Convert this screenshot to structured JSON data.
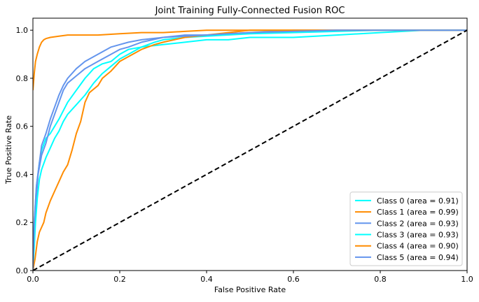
{
  "chart_data": {
    "type": "line",
    "title": "Joint Training Fully-Connected Fusion ROC",
    "xlabel": "False Positive Rate",
    "ylabel": "True Positive Rate",
    "xlim": [
      0.0,
      1.0
    ],
    "ylim": [
      0.0,
      1.05
    ],
    "xticks": [
      "0.0",
      "0.2",
      "0.4",
      "0.6",
      "0.8",
      "1.0"
    ],
    "yticks": [
      "0.0",
      "0.2",
      "0.4",
      "0.6",
      "0.8",
      "1.0"
    ],
    "grid": false,
    "legend_position": "lower-right",
    "diagonal": {
      "color": "#000000",
      "style": "dashed",
      "points": [
        [
          0,
          0
        ],
        [
          1,
          1
        ]
      ]
    },
    "series": [
      {
        "name": "Class 0 (area = 0.91)",
        "color": "#00ffff",
        "points": [
          [
            0,
            0
          ],
          [
            0.003,
            0.2
          ],
          [
            0.008,
            0.35
          ],
          [
            0.015,
            0.45
          ],
          [
            0.02,
            0.5
          ],
          [
            0.03,
            0.55
          ],
          [
            0.04,
            0.57
          ],
          [
            0.05,
            0.6
          ],
          [
            0.06,
            0.63
          ],
          [
            0.08,
            0.7
          ],
          [
            0.1,
            0.75
          ],
          [
            0.12,
            0.8
          ],
          [
            0.14,
            0.84
          ],
          [
            0.16,
            0.86
          ],
          [
            0.18,
            0.87
          ],
          [
            0.2,
            0.9
          ],
          [
            0.22,
            0.92
          ],
          [
            0.25,
            0.93
          ],
          [
            0.3,
            0.94
          ],
          [
            0.35,
            0.95
          ],
          [
            0.4,
            0.96
          ],
          [
            0.45,
            0.96
          ],
          [
            0.5,
            0.97
          ],
          [
            0.6,
            0.97
          ],
          [
            0.7,
            0.98
          ],
          [
            0.8,
            0.99
          ],
          [
            0.9,
            1.0
          ],
          [
            1.0,
            1.0
          ]
        ]
      },
      {
        "name": "Class 1 (area = 0.99)",
        "color": "#ff8c00",
        "points": [
          [
            0,
            0.75
          ],
          [
            0.003,
            0.82
          ],
          [
            0.006,
            0.87
          ],
          [
            0.01,
            0.9
          ],
          [
            0.015,
            0.93
          ],
          [
            0.02,
            0.95
          ],
          [
            0.025,
            0.96
          ],
          [
            0.03,
            0.965
          ],
          [
            0.04,
            0.97
          ],
          [
            0.06,
            0.975
          ],
          [
            0.08,
            0.98
          ],
          [
            0.1,
            0.98
          ],
          [
            0.15,
            0.98
          ],
          [
            0.2,
            0.985
          ],
          [
            0.25,
            0.99
          ],
          [
            0.3,
            0.99
          ],
          [
            0.35,
            0.995
          ],
          [
            0.4,
            1.0
          ],
          [
            0.5,
            1.0
          ],
          [
            0.6,
            1.0
          ],
          [
            0.8,
            1.0
          ],
          [
            1.0,
            1.0
          ]
        ]
      },
      {
        "name": "Class 2 (area = 0.93)",
        "color": "#6495ed",
        "points": [
          [
            0,
            0
          ],
          [
            0.003,
            0.15
          ],
          [
            0.007,
            0.28
          ],
          [
            0.012,
            0.4
          ],
          [
            0.02,
            0.48
          ],
          [
            0.03,
            0.53
          ],
          [
            0.04,
            0.6
          ],
          [
            0.05,
            0.65
          ],
          [
            0.06,
            0.7
          ],
          [
            0.07,
            0.75
          ],
          [
            0.08,
            0.78
          ],
          [
            0.1,
            0.81
          ],
          [
            0.12,
            0.84
          ],
          [
            0.14,
            0.86
          ],
          [
            0.16,
            0.88
          ],
          [
            0.18,
            0.9
          ],
          [
            0.2,
            0.92
          ],
          [
            0.22,
            0.93
          ],
          [
            0.25,
            0.95
          ],
          [
            0.3,
            0.97
          ],
          [
            0.35,
            0.98
          ],
          [
            0.4,
            0.98
          ],
          [
            0.45,
            0.985
          ],
          [
            0.5,
            0.99
          ],
          [
            0.6,
            1.0
          ],
          [
            0.8,
            1.0
          ],
          [
            1.0,
            1.0
          ]
        ]
      },
      {
        "name": "Class 3 (area = 0.93)",
        "color": "#00ffff",
        "points": [
          [
            0,
            0
          ],
          [
            0.003,
            0.1
          ],
          [
            0.006,
            0.2
          ],
          [
            0.01,
            0.3
          ],
          [
            0.015,
            0.38
          ],
          [
            0.02,
            0.42
          ],
          [
            0.03,
            0.47
          ],
          [
            0.04,
            0.51
          ],
          [
            0.05,
            0.55
          ],
          [
            0.06,
            0.58
          ],
          [
            0.07,
            0.62
          ],
          [
            0.08,
            0.65
          ],
          [
            0.1,
            0.69
          ],
          [
            0.12,
            0.73
          ],
          [
            0.14,
            0.78
          ],
          [
            0.16,
            0.82
          ],
          [
            0.18,
            0.85
          ],
          [
            0.2,
            0.88
          ],
          [
            0.22,
            0.9
          ],
          [
            0.25,
            0.93
          ],
          [
            0.28,
            0.95
          ],
          [
            0.3,
            0.96
          ],
          [
            0.35,
            0.97
          ],
          [
            0.4,
            0.975
          ],
          [
            0.5,
            0.985
          ],
          [
            0.6,
            0.99
          ],
          [
            0.7,
            0.995
          ],
          [
            0.8,
            1.0
          ],
          [
            1.0,
            1.0
          ]
        ]
      },
      {
        "name": "Class 4 (area = 0.90)",
        "color": "#ff8c00",
        "points": [
          [
            0,
            0
          ],
          [
            0.005,
            0.05
          ],
          [
            0.01,
            0.12
          ],
          [
            0.015,
            0.16
          ],
          [
            0.02,
            0.18
          ],
          [
            0.025,
            0.2
          ],
          [
            0.03,
            0.24
          ],
          [
            0.04,
            0.29
          ],
          [
            0.05,
            0.33
          ],
          [
            0.06,
            0.37
          ],
          [
            0.07,
            0.41
          ],
          [
            0.08,
            0.44
          ],
          [
            0.09,
            0.5
          ],
          [
            0.1,
            0.57
          ],
          [
            0.11,
            0.62
          ],
          [
            0.12,
            0.7
          ],
          [
            0.13,
            0.74
          ],
          [
            0.15,
            0.77
          ],
          [
            0.16,
            0.8
          ],
          [
            0.18,
            0.83
          ],
          [
            0.2,
            0.87
          ],
          [
            0.22,
            0.89
          ],
          [
            0.25,
            0.92
          ],
          [
            0.28,
            0.94
          ],
          [
            0.3,
            0.95
          ],
          [
            0.35,
            0.97
          ],
          [
            0.4,
            0.98
          ],
          [
            0.45,
            0.99
          ],
          [
            0.5,
            1.0
          ],
          [
            0.6,
            1.0
          ],
          [
            1.0,
            1.0
          ]
        ]
      },
      {
        "name": "Class 5 (area = 0.94)",
        "color": "#6495ed",
        "points": [
          [
            0,
            0
          ],
          [
            0.003,
            0.2
          ],
          [
            0.008,
            0.35
          ],
          [
            0.015,
            0.45
          ],
          [
            0.02,
            0.52
          ],
          [
            0.03,
            0.57
          ],
          [
            0.04,
            0.63
          ],
          [
            0.05,
            0.68
          ],
          [
            0.06,
            0.73
          ],
          [
            0.07,
            0.77
          ],
          [
            0.08,
            0.8
          ],
          [
            0.1,
            0.84
          ],
          [
            0.12,
            0.87
          ],
          [
            0.14,
            0.89
          ],
          [
            0.16,
            0.91
          ],
          [
            0.18,
            0.93
          ],
          [
            0.2,
            0.94
          ],
          [
            0.22,
            0.95
          ],
          [
            0.25,
            0.96
          ],
          [
            0.3,
            0.97
          ],
          [
            0.35,
            0.975
          ],
          [
            0.4,
            0.98
          ],
          [
            0.45,
            0.985
          ],
          [
            0.5,
            0.99
          ],
          [
            0.6,
            0.995
          ],
          [
            0.7,
            1.0
          ],
          [
            1.0,
            1.0
          ]
        ]
      }
    ]
  }
}
